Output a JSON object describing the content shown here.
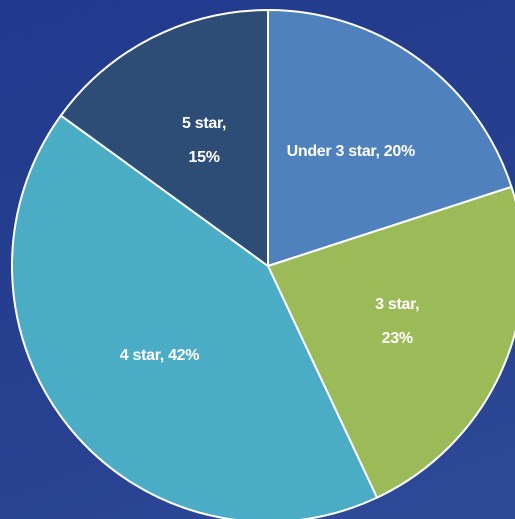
{
  "chart_data": {
    "type": "pie",
    "values": [
      20,
      23,
      42,
      15
    ],
    "value_labels": [
      "Under 3 star, 20%",
      "3 star,\n23%",
      "4 star, 42%",
      "5 star,\n15%"
    ],
    "colors": [
      "#4f81bd",
      "#9bbb59",
      "#4bacc6",
      "#2d4d76"
    ]
  }
}
